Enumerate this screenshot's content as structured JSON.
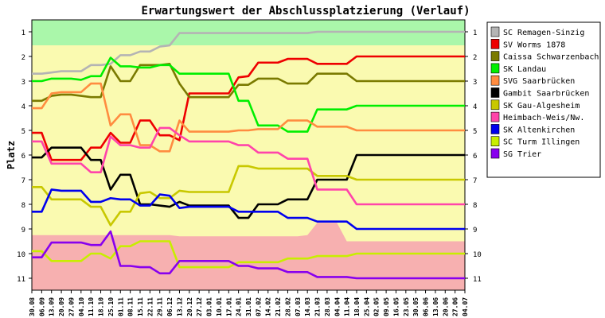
{
  "chart_data": {
    "type": "line",
    "title": "Erwartungswert der Abschlussplatzierung (Verlauf)",
    "ylabel": "Platz",
    "ylim": [
      1,
      11
    ],
    "y_inverted": true,
    "y_ticks": [
      1,
      2,
      3,
      4,
      5,
      6,
      7,
      8,
      9,
      10,
      11
    ],
    "grid": false,
    "legend_position": "right",
    "x": [
      "30.08",
      "06.09",
      "13.09",
      "20.09",
      "27.09",
      "04.10",
      "11.10",
      "18.10",
      "25.10",
      "01.11",
      "08.11",
      "15.11",
      "22.11",
      "29.11",
      "06.12",
      "13.12",
      "20.12",
      "27.12",
      "03.01",
      "10.01",
      "17.01",
      "24.01",
      "31.01",
      "07.02",
      "14.02",
      "21.02",
      "28.02",
      "07.03",
      "14.03",
      "21.03",
      "28.03",
      "04.04",
      "11.04",
      "18.04",
      "25.04",
      "02.05",
      "09.05",
      "16.05",
      "23.05",
      "30.05",
      "06.06",
      "13.06",
      "20.06",
      "27.06",
      "04.07"
    ],
    "background_zones": [
      {
        "name": "promotion",
        "color": "#aaf7aa"
      },
      {
        "name": "middle",
        "color": "#fafab0"
      },
      {
        "name": "relegation",
        "color": "#f7b0b0"
      }
    ],
    "background_boundaries": {
      "promotion_lower": [
        1.55,
        1.55,
        1.55,
        1.55,
        1.55,
        1.55,
        1.55,
        1.55,
        1.55,
        1.55,
        1.55,
        1.55,
        1.55,
        1.55,
        1.55,
        1.55,
        1.55,
        1.55,
        1.55,
        1.55,
        1.55,
        1.55,
        1.55,
        1.55,
        1.55,
        1.55,
        1.55,
        1.55,
        1.55,
        1.55,
        1.55,
        1.55,
        1.55,
        1.55,
        1.55,
        1.55,
        1.55,
        1.55,
        1.55,
        1.55,
        1.55,
        1.55,
        1.55,
        1.55,
        1.55
      ],
      "relegation_upper": [
        9.25,
        9.25,
        9.25,
        9.25,
        9.25,
        9.25,
        9.25,
        9.25,
        9.25,
        9.25,
        9.25,
        9.25,
        9.25,
        9.25,
        9.25,
        9.3,
        9.3,
        9.3,
        9.3,
        9.3,
        9.3,
        9.3,
        9.3,
        9.3,
        9.3,
        9.3,
        9.3,
        9.3,
        9.25,
        8.75,
        8.75,
        8.75,
        9.5,
        9.5,
        9.5,
        9.5,
        9.5,
        9.5,
        9.5,
        9.5,
        9.5,
        9.5,
        9.5,
        9.5,
        9.5
      ]
    },
    "series": [
      {
        "name": "SC Remagen-Sinzig",
        "color": "#b4b4b4",
        "values": [
          2.7,
          2.7,
          2.65,
          2.6,
          2.6,
          2.6,
          2.35,
          2.35,
          2.3,
          1.95,
          1.95,
          1.8,
          1.8,
          1.6,
          1.55,
          1.05,
          1.05,
          1.05,
          1.05,
          1.05,
          1.05,
          1.05,
          1.05,
          1.05,
          1.05,
          1.05,
          1.05,
          1.05,
          1.05,
          1.0,
          1.0,
          1.0,
          1.0,
          1.0,
          1.0,
          1.0,
          1.0,
          1.0,
          1.0,
          1.0,
          1.0,
          1.0,
          1.0,
          1.0,
          1.0
        ]
      },
      {
        "name": "SV Worms 1878",
        "color": "#ee0000",
        "values": [
          5.1,
          5.1,
          6.2,
          6.2,
          6.2,
          6.2,
          5.7,
          5.7,
          5.1,
          5.5,
          5.5,
          4.6,
          4.6,
          5.2,
          5.2,
          5.4,
          3.5,
          3.5,
          3.5,
          3.5,
          3.5,
          2.85,
          2.8,
          2.25,
          2.25,
          2.25,
          2.1,
          2.1,
          2.1,
          2.3,
          2.3,
          2.3,
          2.3,
          2.0,
          2.0,
          2.0,
          2.0,
          2.0,
          2.0,
          2.0,
          2.0,
          2.0,
          2.0,
          2.0,
          2.0
        ]
      },
      {
        "name": "Caissa Schwarzenbach",
        "color": "#7a7a00",
        "values": [
          3.8,
          3.8,
          3.6,
          3.55,
          3.55,
          3.6,
          3.65,
          3.65,
          2.4,
          3.0,
          3.0,
          2.35,
          2.35,
          2.35,
          2.3,
          3.1,
          3.65,
          3.65,
          3.65,
          3.65,
          3.65,
          3.15,
          3.15,
          2.9,
          2.9,
          2.9,
          3.1,
          3.1,
          3.1,
          2.7,
          2.7,
          2.7,
          2.7,
          3.0,
          3.0,
          3.0,
          3.0,
          3.0,
          3.0,
          3.0,
          3.0,
          3.0,
          3.0,
          3.0,
          3.0
        ]
      },
      {
        "name": "SK Landau",
        "color": "#00ee00",
        "values": [
          3.0,
          3.0,
          2.9,
          2.9,
          2.9,
          2.95,
          2.8,
          2.8,
          2.05,
          2.4,
          2.4,
          2.45,
          2.45,
          2.35,
          2.35,
          2.7,
          2.7,
          2.7,
          2.7,
          2.7,
          2.7,
          3.8,
          3.8,
          4.8,
          4.8,
          4.8,
          5.05,
          5.05,
          5.05,
          4.15,
          4.15,
          4.15,
          4.15,
          4.0,
          4.0,
          4.0,
          4.0,
          4.0,
          4.0,
          4.0,
          4.0,
          4.0,
          4.0,
          4.0,
          4.0
        ]
      },
      {
        "name": "SVG Saarbrücken",
        "color": "#ff8c40",
        "values": [
          4.1,
          4.1,
          3.5,
          3.45,
          3.45,
          3.45,
          3.1,
          3.1,
          4.8,
          4.35,
          4.35,
          5.6,
          5.6,
          5.85,
          5.85,
          4.6,
          5.05,
          5.05,
          5.05,
          5.05,
          5.05,
          5.0,
          5.0,
          4.95,
          4.95,
          4.95,
          4.6,
          4.6,
          4.6,
          4.85,
          4.85,
          4.85,
          4.85,
          5.0,
          5.0,
          5.0,
          5.0,
          5.0,
          5.0,
          5.0,
          5.0,
          5.0,
          5.0,
          5.0,
          5.0
        ]
      },
      {
        "name": "Gambit Saarbrücken",
        "color": "#000000",
        "values": [
          6.1,
          6.1,
          5.7,
          5.7,
          5.7,
          5.7,
          6.2,
          6.2,
          7.4,
          6.8,
          6.8,
          8.0,
          8.0,
          8.05,
          8.1,
          7.9,
          8.05,
          8.05,
          8.05,
          8.05,
          8.05,
          8.55,
          8.55,
          8.0,
          8.0,
          8.0,
          7.8,
          7.8,
          7.8,
          7.0,
          7.0,
          7.0,
          7.0,
          6.0,
          6.0,
          6.0,
          6.0,
          6.0,
          6.0,
          6.0,
          6.0,
          6.0,
          6.0,
          6.0,
          6.0
        ]
      },
      {
        "name": "SK Gau-Algesheim",
        "color": "#c8c800",
        "values": [
          7.3,
          7.3,
          7.8,
          7.8,
          7.8,
          7.8,
          8.1,
          8.1,
          8.85,
          8.3,
          8.3,
          7.55,
          7.5,
          7.75,
          7.75,
          7.45,
          7.5,
          7.5,
          7.5,
          7.5,
          7.5,
          6.45,
          6.45,
          6.55,
          6.55,
          6.55,
          6.55,
          6.55,
          6.55,
          6.85,
          6.85,
          6.85,
          6.85,
          7.0,
          7.0,
          7.0,
          7.0,
          7.0,
          7.0,
          7.0,
          7.0,
          7.0,
          7.0,
          7.0,
          7.0
        ]
      },
      {
        "name": "Heimbach-Weis/Nw.",
        "color": "#ff44aa",
        "values": [
          5.45,
          5.45,
          6.35,
          6.35,
          6.35,
          6.35,
          6.7,
          6.7,
          5.25,
          5.6,
          5.6,
          5.7,
          5.7,
          4.9,
          4.9,
          5.2,
          5.45,
          5.45,
          5.45,
          5.45,
          5.45,
          5.6,
          5.6,
          5.9,
          5.9,
          5.9,
          6.15,
          6.15,
          6.15,
          7.4,
          7.4,
          7.4,
          7.4,
          8.0,
          8.0,
          8.0,
          8.0,
          8.0,
          8.0,
          8.0,
          8.0,
          8.0,
          8.0,
          8.0,
          8.0
        ]
      },
      {
        "name": "SK Altenkirchen",
        "color": "#0000ee",
        "values": [
          8.3,
          8.3,
          7.4,
          7.45,
          7.45,
          7.45,
          7.9,
          7.9,
          7.75,
          7.8,
          7.8,
          8.05,
          8.05,
          7.6,
          7.65,
          8.15,
          8.1,
          8.1,
          8.1,
          8.1,
          8.1,
          8.3,
          8.3,
          8.3,
          8.3,
          8.3,
          8.55,
          8.55,
          8.55,
          8.7,
          8.7,
          8.7,
          8.7,
          9.0,
          9.0,
          9.0,
          9.0,
          9.0,
          9.0,
          9.0,
          9.0,
          9.0,
          9.0,
          9.0,
          9.0
        ]
      },
      {
        "name": "SC Turm Illingen",
        "color": "#c8ee00",
        "values": [
          9.9,
          9.9,
          10.3,
          10.3,
          10.3,
          10.3,
          10.0,
          10.0,
          10.2,
          9.7,
          9.7,
          9.5,
          9.5,
          9.5,
          9.5,
          10.55,
          10.55,
          10.55,
          10.55,
          10.55,
          10.55,
          10.35,
          10.35,
          10.35,
          10.35,
          10.35,
          10.2,
          10.2,
          10.2,
          10.1,
          10.1,
          10.1,
          10.1,
          10.0,
          10.0,
          10.0,
          10.0,
          10.0,
          10.0,
          10.0,
          10.0,
          10.0,
          10.0,
          10.0,
          10.0
        ]
      },
      {
        "name": "SG Trier",
        "color": "#8800ee",
        "values": [
          10.15,
          10.15,
          9.55,
          9.55,
          9.55,
          9.55,
          9.65,
          9.65,
          9.1,
          10.5,
          10.5,
          10.55,
          10.55,
          10.8,
          10.8,
          10.3,
          10.3,
          10.3,
          10.3,
          10.3,
          10.3,
          10.5,
          10.5,
          10.6,
          10.6,
          10.6,
          10.75,
          10.75,
          10.75,
          10.95,
          10.95,
          10.95,
          10.95,
          11.0,
          11.0,
          11.0,
          11.0,
          11.0,
          11.0,
          11.0,
          11.0,
          11.0,
          11.0,
          11.0,
          11.0
        ]
      }
    ]
  }
}
